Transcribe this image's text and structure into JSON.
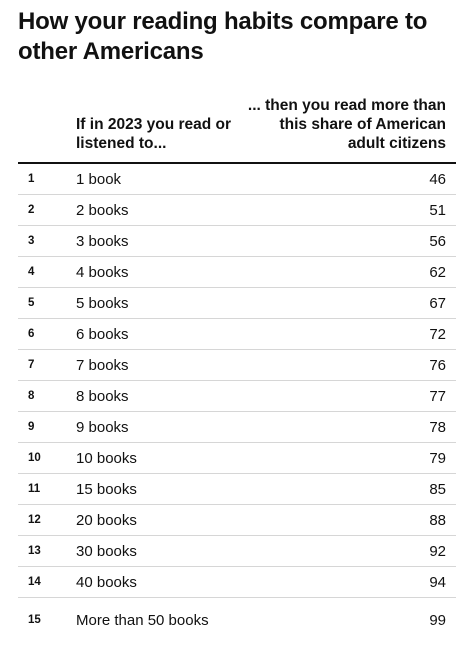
{
  "chart_data": {
    "type": "table",
    "title": "How your reading habits compare to other Americans",
    "columns": [
      "",
      "If in 2023 you read or listened to...",
      "... then you read more than this share of American adult citizens"
    ],
    "rows": [
      {
        "rank": "1",
        "read": "1 book",
        "share": 46
      },
      {
        "rank": "2",
        "read": "2 books",
        "share": 51
      },
      {
        "rank": "3",
        "read": "3 books",
        "share": 56
      },
      {
        "rank": "4",
        "read": "4 books",
        "share": 62
      },
      {
        "rank": "5",
        "read": "5 books",
        "share": 67
      },
      {
        "rank": "6",
        "read": "6 books",
        "share": 72
      },
      {
        "rank": "7",
        "read": "7 books",
        "share": 76
      },
      {
        "rank": "8",
        "read": "8 books",
        "share": 77
      },
      {
        "rank": "9",
        "read": "9 books",
        "share": 78
      },
      {
        "rank": "10",
        "read": "10 books",
        "share": 79
      },
      {
        "rank": "11",
        "read": "15 books",
        "share": 85
      },
      {
        "rank": "12",
        "read": "20 books",
        "share": 88
      },
      {
        "rank": "13",
        "read": "30 books",
        "share": 92
      },
      {
        "rank": "14",
        "read": "40 books",
        "share": 94
      },
      {
        "rank": "15",
        "read": "More than 50 books",
        "share": 99
      }
    ]
  }
}
